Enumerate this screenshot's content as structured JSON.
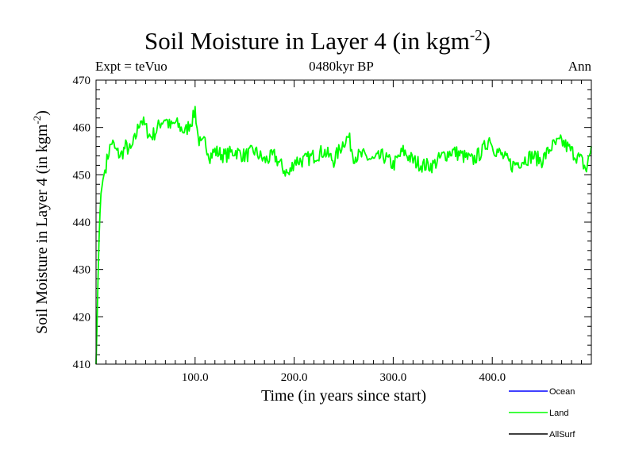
{
  "title": {
    "text": "Soil Moisture in Layer 4 (in kgm",
    "sup": "-2",
    "close": ")"
  },
  "subtitle_left": "Expt = teVuo",
  "subtitle_center": "0480kyr BP",
  "subtitle_right": "Ann",
  "chart_data": {
    "type": "line",
    "title": "Soil Moisture in Layer 4 (in kgm-2)",
    "xlabel": "Time (in years since start)",
    "ylabel": {
      "text": "Soil Moisture in Layer 4 (in kgm",
      "sup": "-2",
      "close": ")"
    },
    "xlim": [
      0,
      500
    ],
    "ylim": [
      410,
      470
    ],
    "x_ticks": [
      100,
      200,
      300,
      400
    ],
    "x_tick_labels": [
      "100.0",
      "200.0",
      "300.0",
      "400.0"
    ],
    "y_ticks": [
      410,
      420,
      430,
      440,
      450,
      460,
      470
    ],
    "y_tick_labels": [
      "410",
      "420",
      "430",
      "440",
      "450",
      "460",
      "470"
    ],
    "grid": false,
    "legend_position": "bottom-right",
    "series": [
      {
        "name": "Ocean",
        "color": "#0000ff",
        "x": [],
        "y": []
      },
      {
        "name": "Land",
        "color": "#00ff00",
        "x": [
          0,
          1,
          2,
          3,
          4,
          5,
          7,
          10,
          13,
          16,
          20,
          25,
          30,
          35,
          40,
          45,
          50,
          55,
          60,
          65,
          70,
          75,
          80,
          85,
          90,
          95,
          98,
          100,
          103,
          106,
          110,
          115,
          120,
          130,
          140,
          150,
          160,
          170,
          180,
          190,
          195,
          200,
          210,
          220,
          230,
          240,
          250,
          255,
          260,
          270,
          280,
          290,
          300,
          310,
          320,
          330,
          340,
          350,
          360,
          370,
          380,
          390,
          398,
          400,
          410,
          420,
          430,
          440,
          450,
          460,
          470,
          480,
          490,
          495,
          500
        ],
        "y": [
          410,
          418,
          428,
          436,
          442,
          446,
          449,
          452,
          455,
          457,
          455,
          454,
          456,
          455,
          458,
          462,
          460,
          458,
          459,
          461,
          462,
          460,
          461,
          460,
          459,
          461,
          462,
          464,
          458,
          456,
          457,
          454,
          455,
          454,
          455,
          454,
          455,
          453,
          454,
          451,
          450,
          453,
          453,
          454,
          455,
          453,
          457,
          458,
          454,
          454,
          453,
          454,
          452,
          455,
          453,
          452,
          452,
          454,
          455,
          454,
          453,
          455,
          458,
          456,
          454,
          452,
          453,
          454,
          453,
          456,
          457,
          455,
          453,
          451,
          456
        ]
      },
      {
        "name": "AllSurf",
        "color": "#000000",
        "x": [],
        "y": []
      }
    ]
  }
}
